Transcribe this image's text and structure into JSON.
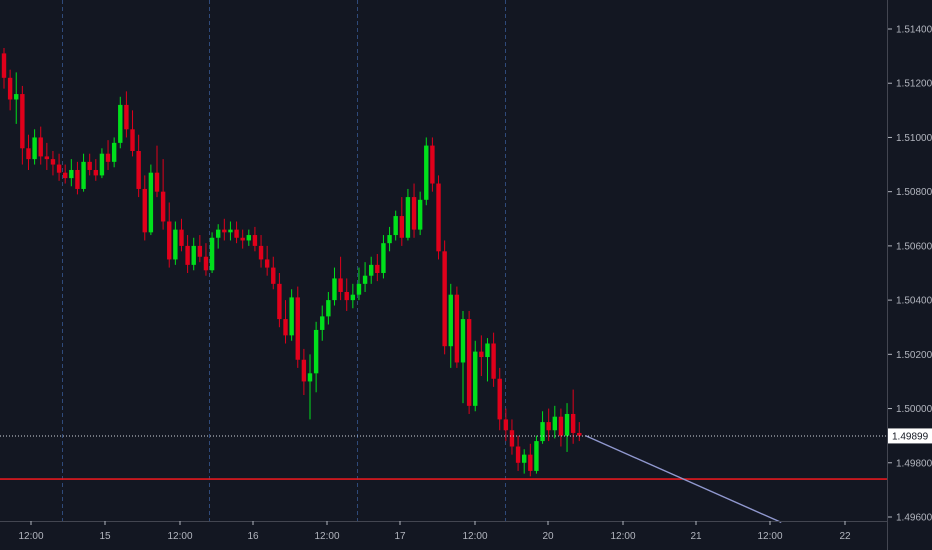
{
  "chart_data": {
    "type": "candlestick",
    "colors": {
      "background": "#131722",
      "up": "#00e01c",
      "down": "#e0001b",
      "support": "#e3181e",
      "trend": "#9098cf",
      "separator": "#2f4a7a",
      "text": "#b2b5be"
    },
    "x_ticks": [
      "12:00",
      "15",
      "12:00",
      "16",
      "12:00",
      "17",
      "12:00",
      "20",
      "12:00",
      "21",
      "12:00",
      "22"
    ],
    "y_ticks": [
      "1.51400",
      "1.51200",
      "1.51000",
      "1.50800",
      "1.50600",
      "1.50400",
      "1.50200",
      "1.50000",
      "1.49800",
      "1.49600"
    ],
    "ylim": [
      1.4955,
      1.516
    ],
    "current_price": {
      "value": 1.49899,
      "label": "1.49899"
    },
    "support_level": 1.4974,
    "trend_line": {
      "start": {
        "index": 95,
        "value": 1.499
      },
      "end": {
        "index": 127,
        "value": 1.4958
      }
    },
    "candles": [
      [
        1.5131,
        1.5133,
        1.5118,
        1.5122
      ],
      [
        1.5122,
        1.5125,
        1.511,
        1.5114
      ],
      [
        1.5114,
        1.5124,
        1.5105,
        1.5116
      ],
      [
        1.5116,
        1.5119,
        1.509,
        1.5096
      ],
      [
        1.5096,
        1.5101,
        1.5088,
        1.5092
      ],
      [
        1.5092,
        1.5103,
        1.509,
        1.51
      ],
      [
        1.51,
        1.5104,
        1.509,
        1.5093
      ],
      [
        1.5093,
        1.5098,
        1.5088,
        1.5092
      ],
      [
        1.5092,
        1.5095,
        1.5086,
        1.509
      ],
      [
        1.509,
        1.5094,
        1.5084,
        1.5087
      ],
      [
        1.5087,
        1.509,
        1.5083,
        1.5085
      ],
      [
        1.5085,
        1.5092,
        1.5082,
        1.5088
      ],
      [
        1.5088,
        1.5091,
        1.5079,
        1.5081
      ],
      [
        1.5081,
        1.5094,
        1.508,
        1.5091
      ],
      [
        1.5091,
        1.5094,
        1.5086,
        1.5088
      ],
      [
        1.5088,
        1.5092,
        1.5084,
        1.5086
      ],
      [
        1.5086,
        1.5096,
        1.5085,
        1.5094
      ],
      [
        1.5094,
        1.5099,
        1.5088,
        1.5091
      ],
      [
        1.5091,
        1.51,
        1.5089,
        1.5098
      ],
      [
        1.5098,
        1.5115,
        1.5096,
        1.5112
      ],
      [
        1.5112,
        1.5117,
        1.51,
        1.5103
      ],
      [
        1.5103,
        1.511,
        1.5093,
        1.5095
      ],
      [
        1.5095,
        1.5101,
        1.5078,
        1.5081
      ],
      [
        1.5081,
        1.5086,
        1.5062,
        1.5065
      ],
      [
        1.5065,
        1.509,
        1.5064,
        1.5087
      ],
      [
        1.5087,
        1.5097,
        1.5078,
        1.508
      ],
      [
        1.508,
        1.5092,
        1.5066,
        1.5069
      ],
      [
        1.5069,
        1.5076,
        1.5052,
        1.5055
      ],
      [
        1.5055,
        1.5069,
        1.5053,
        1.5066
      ],
      [
        1.5066,
        1.507,
        1.5058,
        1.506
      ],
      [
        1.506,
        1.5064,
        1.505,
        1.5053
      ],
      [
        1.5053,
        1.5063,
        1.5051,
        1.506
      ],
      [
        1.506,
        1.5064,
        1.5054,
        1.5056
      ],
      [
        1.5056,
        1.5061,
        1.5049,
        1.5051
      ],
      [
        1.5051,
        1.5065,
        1.505,
        1.5063
      ],
      [
        1.5063,
        1.5068,
        1.5059,
        1.5066
      ],
      [
        1.5066,
        1.507,
        1.5062,
        1.5065
      ],
      [
        1.5065,
        1.5069,
        1.5062,
        1.5066
      ],
      [
        1.5066,
        1.5069,
        1.5061,
        1.5063
      ],
      [
        1.5063,
        1.5066,
        1.5059,
        1.5062
      ],
      [
        1.5062,
        1.5066,
        1.506,
        1.5064
      ],
      [
        1.5064,
        1.5067,
        1.5058,
        1.506
      ],
      [
        1.506,
        1.5064,
        1.5052,
        1.5055
      ],
      [
        1.5055,
        1.506,
        1.5049,
        1.5052
      ],
      [
        1.5052,
        1.5056,
        1.5044,
        1.5046
      ],
      [
        1.5046,
        1.505,
        1.503,
        1.5033
      ],
      [
        1.5033,
        1.504,
        1.5024,
        1.5027
      ],
      [
        1.5027,
        1.5044,
        1.5025,
        1.5041
      ],
      [
        1.5041,
        1.5045,
        1.5015,
        1.5018
      ],
      [
        1.5018,
        1.5022,
        1.5005,
        1.501
      ],
      [
        1.501,
        1.502,
        1.4996,
        1.5013
      ],
      [
        1.5013,
        1.5032,
        1.5006,
        1.5029
      ],
      [
        1.5029,
        1.5038,
        1.5025,
        1.5034
      ],
      [
        1.5034,
        1.5043,
        1.5031,
        1.504
      ],
      [
        1.504,
        1.5052,
        1.5038,
        1.5048
      ],
      [
        1.5048,
        1.5056,
        1.504,
        1.5043
      ],
      [
        1.5043,
        1.5048,
        1.5036,
        1.504
      ],
      [
        1.504,
        1.5046,
        1.5037,
        1.5042
      ],
      [
        1.5042,
        1.5052,
        1.504,
        1.5046
      ],
      [
        1.5046,
        1.5054,
        1.5043,
        1.5049
      ],
      [
        1.5049,
        1.5056,
        1.5046,
        1.5053
      ],
      [
        1.5053,
        1.5057,
        1.5047,
        1.505
      ],
      [
        1.505,
        1.5064,
        1.5048,
        1.5061
      ],
      [
        1.5061,
        1.5067,
        1.5058,
        1.5064
      ],
      [
        1.5064,
        1.5073,
        1.5062,
        1.5071
      ],
      [
        1.5071,
        1.5078,
        1.506,
        1.5063
      ],
      [
        1.5063,
        1.5081,
        1.5062,
        1.5078
      ],
      [
        1.5078,
        1.5083,
        1.5063,
        1.5066
      ],
      [
        1.5066,
        1.508,
        1.5064,
        1.5077
      ],
      [
        1.5077,
        1.51,
        1.5075,
        1.5097
      ],
      [
        1.5097,
        1.51,
        1.508,
        1.5083
      ],
      [
        1.5083,
        1.5086,
        1.5055,
        1.5058
      ],
      [
        1.5058,
        1.5062,
        1.502,
        1.5023
      ],
      [
        1.5023,
        1.5046,
        1.5015,
        1.5042
      ],
      [
        1.5042,
        1.5045,
        1.5015,
        1.5017
      ],
      [
        1.5017,
        1.5036,
        1.5002,
        1.5033
      ],
      [
        1.5033,
        1.5036,
        1.4998,
        1.5001
      ],
      [
        1.5001,
        1.5025,
        1.4999,
        1.5021
      ],
      [
        1.5021,
        1.5027,
        1.5012,
        1.5019
      ],
      [
        1.5019,
        1.5026,
        1.501,
        1.5024
      ],
      [
        1.5024,
        1.5028,
        1.5008,
        1.5011
      ],
      [
        1.5011,
        1.5015,
        1.4992,
        1.4996
      ],
      [
        1.4996,
        1.5,
        1.4988,
        1.4992
      ],
      [
        1.4992,
        1.4996,
        1.4983,
        1.4986
      ],
      [
        1.4986,
        1.499,
        1.4977,
        1.498
      ],
      [
        1.498,
        1.4985,
        1.4976,
        1.4983
      ],
      [
        1.4983,
        1.4987,
        1.4975,
        1.4977
      ],
      [
        1.4977,
        1.499,
        1.4976,
        1.4988
      ],
      [
        1.4988,
        1.4999,
        1.4987,
        1.4995
      ],
      [
        1.4995,
        1.5,
        1.4988,
        1.4992
      ],
      [
        1.4992,
        1.5001,
        1.4989,
        1.4997
      ],
      [
        1.4997,
        1.5,
        1.4986,
        1.499
      ],
      [
        1.499,
        1.5002,
        1.4984,
        1.4998
      ],
      [
        1.4998,
        1.5007,
        1.4987,
        1.4991
      ],
      [
        1.4991,
        1.4995,
        1.4988,
        1.499
      ]
    ]
  }
}
